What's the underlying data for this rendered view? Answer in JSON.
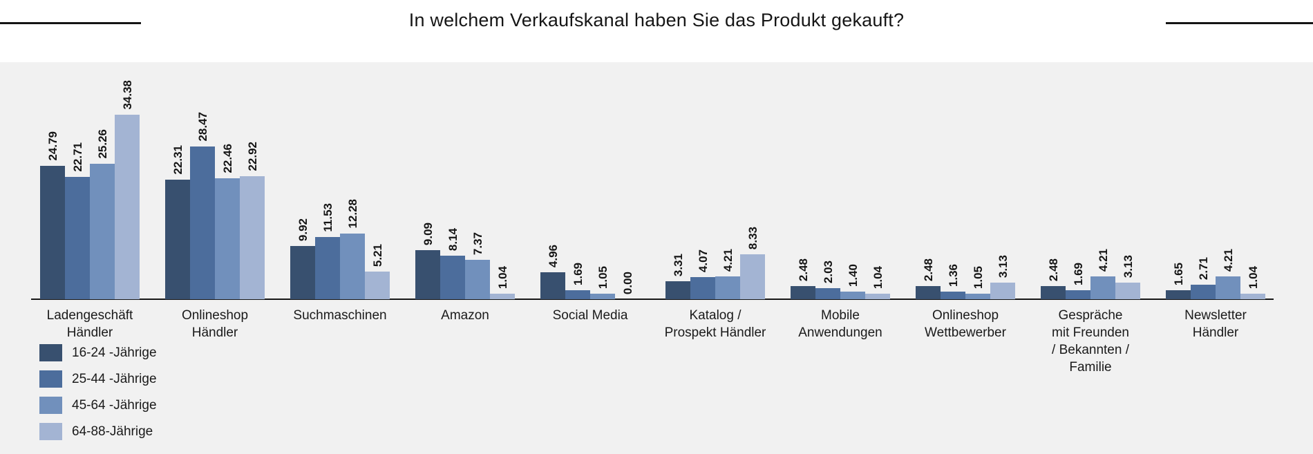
{
  "header": {
    "title": "In welchem Verkaufskanal haben Sie das Produkt gekauft?"
  },
  "chart_data": {
    "type": "bar",
    "title": "In welchem Verkaufskanal haben Sie das Produkt gekauft?",
    "categories": [
      "Ladengeschäft Händler",
      "Onlineshop Händler",
      "Suchmaschinen",
      "Amazon",
      "Social Media",
      "Katalog / Prospekt Händler",
      "Mobile Anwendungen",
      "Onlineshop Wettbewerber",
      "Gespräche mit Freunden / Bekannten / Familie",
      "Newsletter Händler"
    ],
    "categories_wrapped": [
      "Ladengeschäft\nHändler",
      "Onlineshop\nHändler",
      "Suchmaschinen",
      "Amazon",
      "Social Media",
      "Katalog /\nProspekt Händler",
      "Mobile\nAnwendungen",
      "Onlineshop\nWettbewerber",
      "Gespräche\nmit Freunden\n/ Bekannten /\nFamilie",
      "Newsletter\nHändler"
    ],
    "series": [
      {
        "name": "16-24 -Jährige",
        "color": "#38506F",
        "values": [
          24.79,
          22.31,
          9.92,
          9.09,
          4.96,
          3.31,
          2.48,
          2.48,
          2.48,
          1.65
        ]
      },
      {
        "name": "25-44 -Jährige",
        "color": "#4C6D9C",
        "values": [
          22.71,
          28.47,
          11.53,
          8.14,
          1.69,
          4.07,
          2.03,
          1.36,
          1.69,
          2.71
        ]
      },
      {
        "name": "45-64 -Jährige",
        "color": "#7190BC",
        "values": [
          25.26,
          22.46,
          12.28,
          7.37,
          1.05,
          4.21,
          1.4,
          1.05,
          4.21,
          4.21
        ]
      },
      {
        "name": "64-88-Jährige",
        "color": "#A3B4D3",
        "values": [
          34.38,
          22.92,
          5.21,
          1.04,
          0.0,
          8.33,
          1.04,
          3.13,
          3.13,
          1.04
        ]
      }
    ],
    "value_label_decimals": 2,
    "value_label_rotation_deg": -90,
    "xlabel": "",
    "ylabel": "",
    "ylim": [
      0,
      44
    ],
    "grid": false,
    "legend_position": "bottom-left",
    "plot_background": "#F1F1F1",
    "axis_color": "#161616"
  }
}
